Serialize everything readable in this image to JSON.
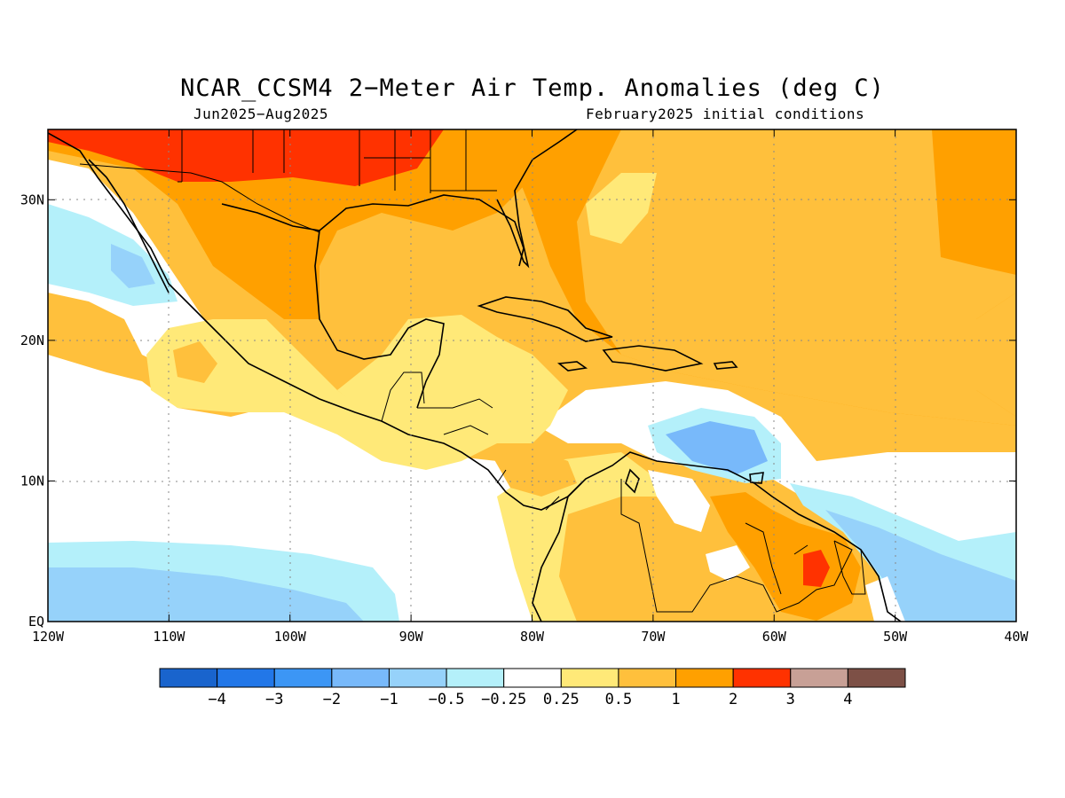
{
  "title": "NCAR_CCSM4 2−Meter Air Temp. Anomalies (deg C)",
  "subtitle_left": "Jun2025−Aug2025",
  "subtitle_right": "February2025 initial conditions",
  "map": {
    "lon_range": [
      -120,
      -40
    ],
    "lat_range": [
      0,
      35
    ],
    "lon_ticks": [
      {
        "value": -120,
        "label": "120W"
      },
      {
        "value": -110,
        "label": "110W"
      },
      {
        "value": -100,
        "label": "100W"
      },
      {
        "value": -90,
        "label": "90W"
      },
      {
        "value": -80,
        "label": "80W"
      },
      {
        "value": -70,
        "label": "70W"
      },
      {
        "value": -60,
        "label": "60W"
      },
      {
        "value": -50,
        "label": "50W"
      },
      {
        "value": -40,
        "label": "40W"
      }
    ],
    "lat_ticks": [
      {
        "value": 0,
        "label": "EQ"
      },
      {
        "value": 10,
        "label": "10N"
      },
      {
        "value": 20,
        "label": "20N"
      },
      {
        "value": 30,
        "label": "30N"
      }
    ],
    "grid": "dotted"
  },
  "colorbar": {
    "colors": [
      "#1964cd",
      "#2277e8",
      "#3c96f5",
      "#78b9fa",
      "#96d2fa",
      "#b4f0fa",
      "#ffffff",
      "#ffe978",
      "#ffc03c",
      "#ffa000",
      "#ff3200",
      "#c8a096",
      "#7d5046"
    ],
    "labels": [
      "−4",
      "−3",
      "−2",
      "−1",
      "−0.5",
      "−0.25",
      "0.25",
      "0.5",
      "1",
      "2",
      "3",
      "4"
    ]
  }
}
